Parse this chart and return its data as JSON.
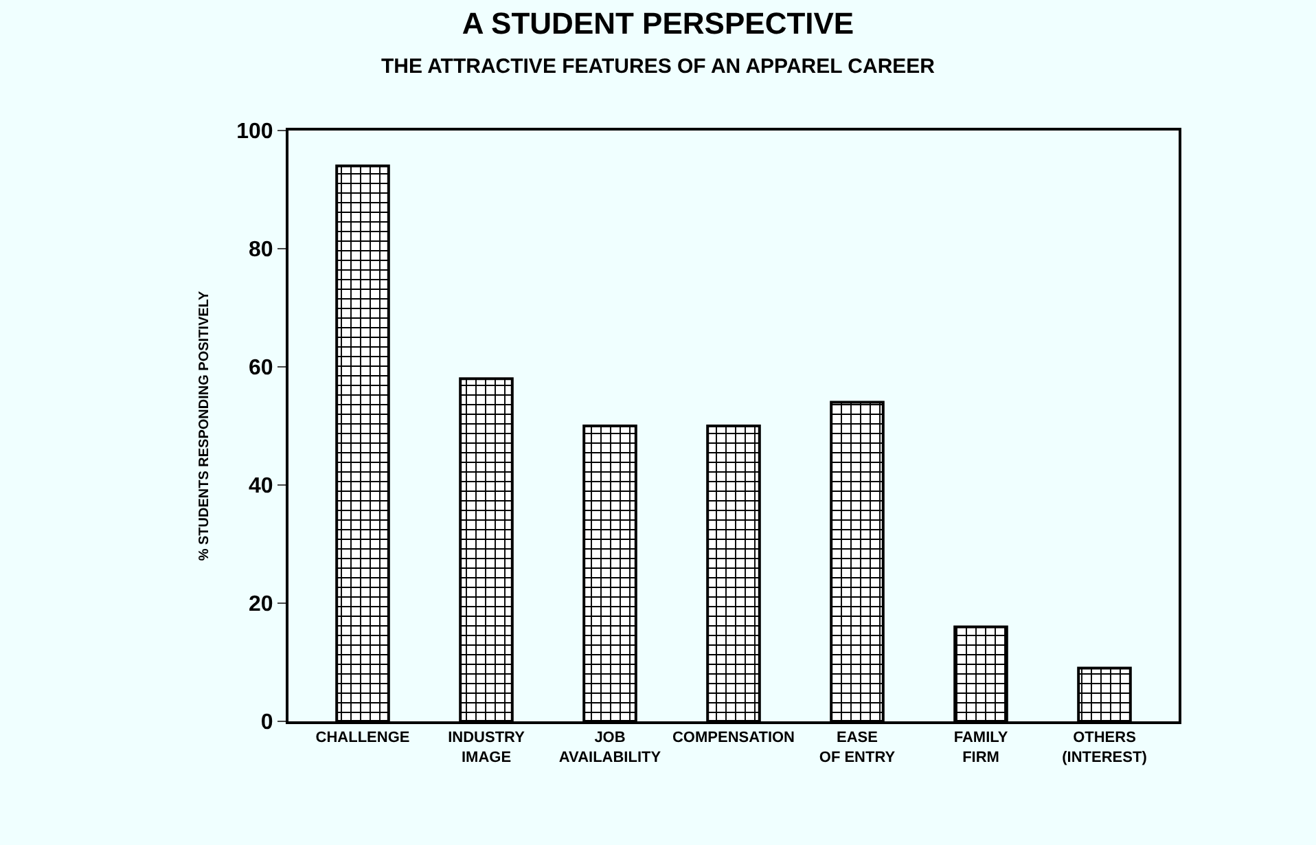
{
  "chart_data": {
    "type": "bar",
    "title": "A STUDENT PERSPECTIVE",
    "subtitle": "THE ATTRACTIVE FEATURES OF AN APPAREL CAREER",
    "ylabel": "% STUDENTS RESPONDING POSITIVELY",
    "categories": [
      "CHALLENGE",
      "INDUSTRY IMAGE",
      "JOB AVAILABILITY",
      "COMPENSATION",
      "EASE OF ENTRY",
      "FAMILY FIRM",
      "OTHERS (INTEREST)"
    ],
    "values": [
      94,
      58,
      50,
      50,
      54,
      16,
      9
    ],
    "color": "#000000",
    "ylim": [
      0,
      100
    ],
    "yticks": [
      0,
      20,
      40,
      60,
      80,
      100
    ],
    "grid": false
  }
}
